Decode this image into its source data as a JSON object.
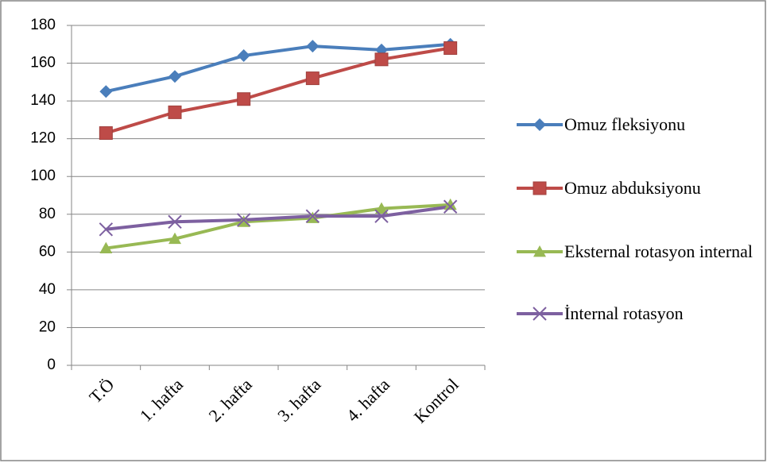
{
  "chart_data": {
    "type": "line",
    "categories": [
      "T.Ö",
      "1. hafta",
      "2. hafta",
      "3. hafta",
      "4. hafta",
      "Kontrol"
    ],
    "series": [
      {
        "name": "Omuz fleksiyonu",
        "color": "#4a7ebb",
        "marker": "diamond",
        "values": [
          145,
          153,
          164,
          169,
          167,
          170
        ]
      },
      {
        "name": "Omuz  abduksiyonu",
        "color": "#be4b48",
        "marker": "square",
        "values": [
          123,
          134,
          141,
          152,
          162,
          168
        ]
      },
      {
        "name": " Eksternal rotasyon internal",
        "color": "#98b954",
        "marker": "triangle",
        "values": [
          62,
          67,
          76,
          78,
          83,
          85
        ]
      },
      {
        "name": "İnternal rotasyon",
        "color": "#7d60a0",
        "marker": "x",
        "values": [
          72,
          76,
          77,
          79,
          79,
          84
        ]
      }
    ],
    "ylim": [
      0,
      180
    ],
    "yticks": [
      0,
      20,
      40,
      60,
      80,
      100,
      120,
      140,
      160,
      180
    ],
    "grid": true,
    "legend": "right"
  }
}
